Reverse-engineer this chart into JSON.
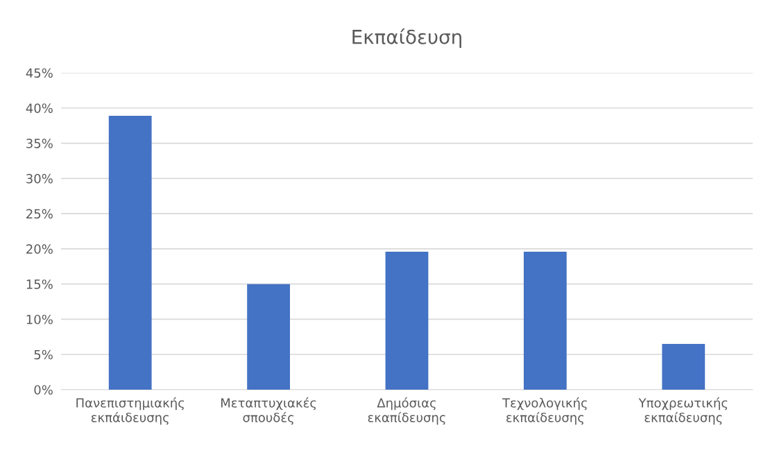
{
  "chart_data": {
    "type": "bar",
    "title": "Εκπαίδευση",
    "categories": [
      "Πανεπιστημιακής εκπάιδευσης",
      "Μεταπτυχιακές σπουδές",
      "Δημόσιας εκαπίδευσης",
      "Τεχνολογικής εκπαίδευσης",
      "Υποχρεωτικής εκπαίδευσης"
    ],
    "values": [
      38.9,
      15.0,
      19.6,
      19.6,
      6.5
    ],
    "color": "#4472c4",
    "ylim": [
      0,
      45
    ],
    "yticks": [
      {
        "value": 0,
        "label": "0%"
      },
      {
        "value": 5,
        "label": "5%"
      },
      {
        "value": 10,
        "label": "10%"
      },
      {
        "value": 15,
        "label": "15%"
      },
      {
        "value": 20,
        "label": "20%"
      },
      {
        "value": 25,
        "label": "25%"
      },
      {
        "value": 30,
        "label": "30%"
      },
      {
        "value": 35,
        "label": "35%"
      },
      {
        "value": 40,
        "label": "40%"
      },
      {
        "value": 45,
        "label": "45%"
      }
    ],
    "grid": "y"
  }
}
